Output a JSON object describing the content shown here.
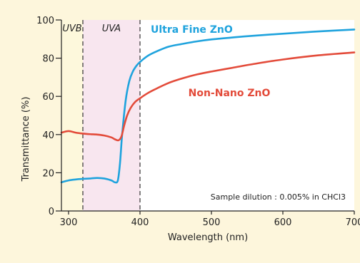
{
  "chart_data": {
    "type": "line",
    "xlabel": "Wavelength (nm)",
    "ylabel": "Transmittance (%)",
    "xlim": [
      290,
      700
    ],
    "ylim": [
      0,
      100
    ],
    "x_ticks": [
      "300",
      "400",
      "500",
      "600",
      "700"
    ],
    "y_ticks": [
      "0",
      "20",
      "40",
      "60",
      "80",
      "100"
    ],
    "grid": false,
    "regions": [
      {
        "label": "UVB",
        "x_range": [
          290,
          320
        ],
        "color": "#fdf8dc"
      },
      {
        "label": "UVA",
        "x_range": [
          320,
          400
        ],
        "color": "#f8e6ef"
      }
    ],
    "dashed_lines_x": [
      320,
      400
    ],
    "annotation": "Sample dilution : 0.005% in CHCl3",
    "series": [
      {
        "name": "Ultra Fine ZnO",
        "color": "#1fa3dd",
        "points": [
          [
            290,
            15
          ],
          [
            300,
            16
          ],
          [
            310,
            16.5
          ],
          [
            320,
            16.8
          ],
          [
            330,
            17
          ],
          [
            340,
            17.3
          ],
          [
            350,
            17
          ],
          [
            360,
            16
          ],
          [
            365,
            15
          ],
          [
            369,
            16
          ],
          [
            372,
            25
          ],
          [
            375,
            40
          ],
          [
            380,
            58
          ],
          [
            385,
            68
          ],
          [
            390,
            73
          ],
          [
            395,
            76
          ],
          [
            400,
            78
          ],
          [
            410,
            81
          ],
          [
            420,
            83
          ],
          [
            440,
            86
          ],
          [
            460,
            87.5
          ],
          [
            480,
            88.8
          ],
          [
            500,
            89.8
          ],
          [
            520,
            90.5
          ],
          [
            550,
            91.5
          ],
          [
            600,
            92.8
          ],
          [
            650,
            94
          ],
          [
            700,
            95
          ]
        ]
      },
      {
        "name": "Non-Nano ZnO",
        "color": "#e34b3a",
        "points": [
          [
            290,
            41
          ],
          [
            300,
            41.8
          ],
          [
            310,
            41
          ],
          [
            320,
            40.5
          ],
          [
            330,
            40.2
          ],
          [
            340,
            40
          ],
          [
            350,
            39.5
          ],
          [
            360,
            38.5
          ],
          [
            365,
            37.5
          ],
          [
            370,
            37
          ],
          [
            374,
            39
          ],
          [
            378,
            45
          ],
          [
            382,
            50
          ],
          [
            387,
            54
          ],
          [
            393,
            57
          ],
          [
            400,
            59
          ],
          [
            410,
            61.5
          ],
          [
            420,
            63.5
          ],
          [
            440,
            67
          ],
          [
            460,
            69.5
          ],
          [
            480,
            71.5
          ],
          [
            500,
            73
          ],
          [
            530,
            75
          ],
          [
            560,
            77
          ],
          [
            600,
            79.3
          ],
          [
            650,
            81.5
          ],
          [
            700,
            83
          ]
        ]
      }
    ]
  },
  "colors": {
    "frame_bg": "#fdf6dc",
    "plot_bg": "#ffffff",
    "axis": "#222222",
    "dashed": "#333333"
  }
}
